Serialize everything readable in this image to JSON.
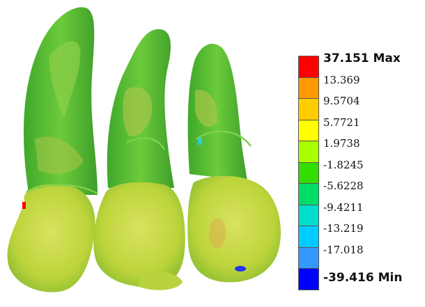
{
  "legend": {
    "labels": [
      "37.151 Max",
      "13.369",
      "9.5704",
      "5.7721",
      "1.9738",
      "-1.8245",
      "-5.6228",
      "-9.4211",
      "-13.219",
      "-17.018",
      "-39.416 Min"
    ],
    "colors": [
      "#ff0000",
      "#ff9900",
      "#ffcc00",
      "#ffff00",
      "#aaff00",
      "#33dd00",
      "#00dd66",
      "#00ddcc",
      "#00ccff",
      "#3399ff",
      "#0000ff"
    ]
  },
  "model_colors": {
    "root": "#5cc23a",
    "root_light": "#8dd04a",
    "crown": "#c4d840",
    "crown_light": "#d8e060",
    "orange_patch": "#d9b24a"
  }
}
